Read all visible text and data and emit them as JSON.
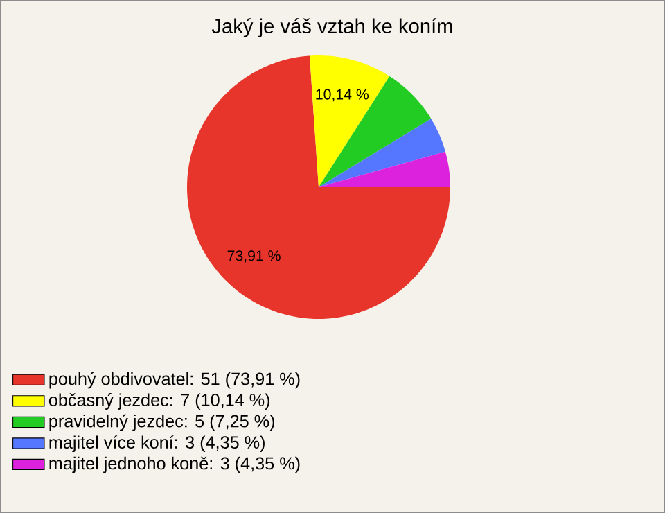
{
  "chart_data": {
    "type": "pie",
    "title": "Jaký je váš vztah ke koním",
    "categories": [
      "pouhý obdivovatel: 51 (73,91 %)",
      "občasný jezdec: 7 (10,14 %)",
      "pravidelný jezdec: 5 (7,25 %)",
      "majitel více koní: 3 (4,35 %)",
      "majitel jednoho koně: 3 (4,35 %)"
    ],
    "values": [
      73.91,
      10.14,
      7.25,
      4.35,
      4.35
    ],
    "colors": [
      "#e8352b",
      "#ffff00",
      "#22cc22",
      "#5577ff",
      "#dd22dd"
    ],
    "value_labels": [
      "73,91 %",
      "10,14 %",
      null,
      null,
      null
    ],
    "legend": "bottom left"
  }
}
